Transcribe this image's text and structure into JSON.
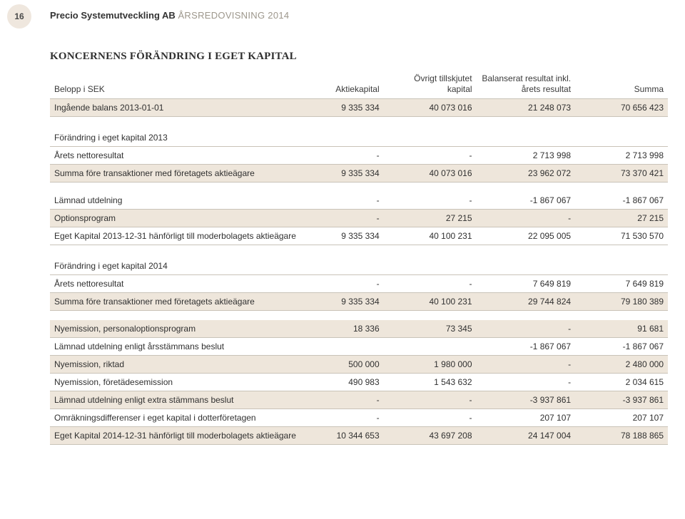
{
  "page_number": "16",
  "header": {
    "company": "Precio Systemutveckling AB",
    "report": "ÅRSREDOVISNING 2014"
  },
  "section_title": "KONCERNENS FÖRÄNDRING I EGET KAPITAL",
  "table": {
    "columns": [
      "Belopp i SEK",
      "Aktiekapital",
      "Övrigt tillskjutet kapital",
      "Balanserat resultat inkl. årets resultat",
      "Summa"
    ],
    "rows": [
      {
        "type": "data_shaded",
        "cells": [
          "Ingående balans 2013-01-01",
          "9 335 334",
          "40 073 016",
          "21 248 073",
          "70 656 423"
        ]
      },
      {
        "type": "spacer"
      },
      {
        "type": "subhead",
        "cells": [
          "Förändring i eget kapital 2013",
          "",
          "",
          "",
          ""
        ]
      },
      {
        "type": "data",
        "cells": [
          "Årets nettoresultat",
          "-",
          "-",
          "2 713 998",
          "2 713 998"
        ]
      },
      {
        "type": "data_shaded",
        "cells": [
          "Summa före transaktioner med företagets aktieägare",
          "9 335 334",
          "40 073 016",
          "23 962 072",
          "73 370 421"
        ]
      },
      {
        "type": "spacer"
      },
      {
        "type": "data",
        "cells": [
          "Lämnad utdelning",
          "-",
          "-",
          "-1 867 067",
          "-1 867 067"
        ]
      },
      {
        "type": "data_shaded",
        "cells": [
          "Optionsprogram",
          "-",
          "27 215",
          "-",
          "27 215"
        ]
      },
      {
        "type": "data",
        "cells": [
          "Eget Kapital 2013-12-31 hänförligt till moderbolagets aktieägare",
          "9 335 334",
          "40 100 231",
          "22 095 005",
          "71 530 570"
        ]
      },
      {
        "type": "spacer"
      },
      {
        "type": "subhead",
        "cells": [
          "Förändring i eget kapital 2014",
          "",
          "",
          "",
          ""
        ]
      },
      {
        "type": "data",
        "cells": [
          "Årets nettoresultat",
          "-",
          "-",
          "7 649 819",
          "7 649 819"
        ]
      },
      {
        "type": "data_shaded",
        "cells": [
          "Summa före transaktioner med företagets aktieägare",
          "9 335 334",
          "40 100 231",
          "29 744 824",
          "79 180 389"
        ]
      },
      {
        "type": "spacer"
      },
      {
        "type": "data_shaded",
        "cells": [
          "Nyemission, personaloptionsprogram",
          "18 336",
          "73 345",
          "-",
          "91 681"
        ]
      },
      {
        "type": "data",
        "cells": [
          "Lämnad utdelning enligt årsstämmans beslut",
          "",
          "",
          "-1 867 067",
          "-1 867 067"
        ]
      },
      {
        "type": "data_shaded",
        "cells": [
          "Nyemission, riktad",
          "500 000",
          "1 980 000",
          "-",
          "2 480 000"
        ]
      },
      {
        "type": "data",
        "cells": [
          "Nyemission, företädesemission",
          "490 983",
          "1 543 632",
          "-",
          "2 034 615"
        ]
      },
      {
        "type": "data_shaded",
        "cells": [
          "Lämnad utdelning enligt extra stämmans beslut",
          "-",
          "-",
          "-3 937 861",
          "-3 937 861"
        ]
      },
      {
        "type": "data",
        "cells": [
          "Omräkningsdifferenser i eget kapital i dotterföretagen",
          "-",
          "-",
          "207 107",
          "207 107"
        ]
      },
      {
        "type": "data_shaded",
        "cells": [
          "Eget Kapital 2014-12-31 hänförligt till moderbolagets aktieägare",
          "10 344 653",
          "43 697 208",
          "24 147 004",
          "78 188 865"
        ]
      }
    ]
  },
  "colors": {
    "shade_bg": "#eee6db",
    "border": "#c9c3b8",
    "circle_bg": "#efe7de",
    "header_muted": "#9d978c"
  }
}
